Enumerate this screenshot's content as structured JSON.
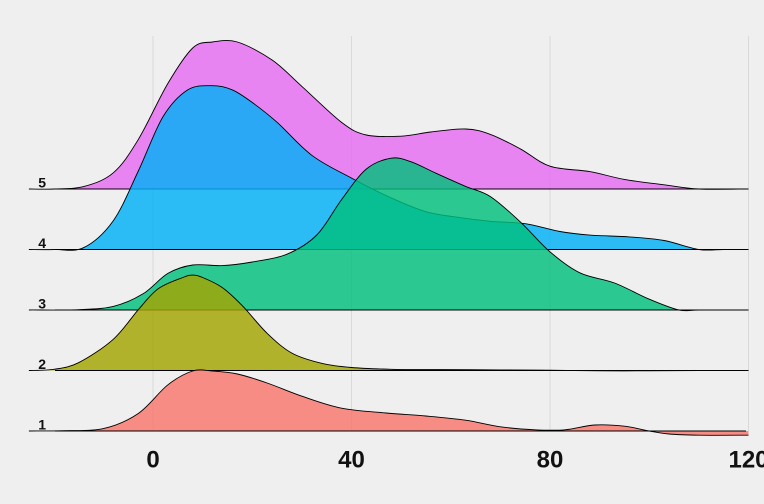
{
  "chart_data": {
    "type": "ridgeline",
    "title": "",
    "xlabel": "",
    "ylabel": "",
    "xlim": [
      -25,
      120
    ],
    "x_ticks": [
      0,
      40,
      80,
      120
    ],
    "y_ticks": [
      "1",
      "2",
      "3",
      "4",
      "5"
    ],
    "grid": "vertical major gridlines only",
    "legend": "none",
    "series": [
      {
        "group": "1",
        "color": "#F8766D",
        "density": [
          [
            -25,
            0
          ],
          [
            -18,
            0.005
          ],
          [
            -10,
            0.04
          ],
          [
            -3,
            0.29
          ],
          [
            3,
            0.77
          ],
          [
            8,
            1.0
          ],
          [
            12,
            1.0
          ],
          [
            17,
            0.95
          ],
          [
            23,
            0.8
          ],
          [
            30,
            0.58
          ],
          [
            38,
            0.38
          ],
          [
            47,
            0.3
          ],
          [
            55,
            0.25
          ],
          [
            63,
            0.18
          ],
          [
            70,
            0.07
          ],
          [
            77,
            0.02
          ],
          [
            83,
            0.02
          ],
          [
            89,
            0.1
          ],
          [
            95,
            0.08
          ],
          [
            100,
            0.0
          ],
          [
            104,
            -0.05
          ],
          [
            110,
            -0.07
          ],
          [
            120,
            -0.07
          ]
        ]
      },
      {
        "group": "2",
        "color": "#A3A500",
        "density": [
          [
            -25,
            0
          ],
          [
            -20,
            0.02
          ],
          [
            -15,
            0.13
          ],
          [
            -8,
            0.52
          ],
          [
            -3,
            1.01
          ],
          [
            1,
            1.36
          ],
          [
            6,
            1.55
          ],
          [
            8,
            1.59
          ],
          [
            10,
            1.55
          ],
          [
            14,
            1.38
          ],
          [
            18,
            1.08
          ],
          [
            23,
            0.62
          ],
          [
            28,
            0.29
          ],
          [
            34,
            0.12
          ],
          [
            40,
            0.05
          ],
          [
            48,
            0.02
          ],
          [
            58,
            0.015
          ],
          [
            70,
            0.01
          ],
          [
            80,
            0.005
          ],
          [
            90,
            -0.005
          ],
          [
            100,
            -0.005
          ],
          [
            110,
            0
          ],
          [
            120,
            0
          ]
        ]
      },
      {
        "group": "3",
        "color": "#00BF7D",
        "density": [
          [
            -25,
            0
          ],
          [
            -15,
            0.005
          ],
          [
            -8,
            0.06
          ],
          [
            -2,
            0.27
          ],
          [
            3,
            0.61
          ],
          [
            8,
            0.75
          ],
          [
            14,
            0.74
          ],
          [
            20,
            0.8
          ],
          [
            27,
            0.93
          ],
          [
            33,
            1.25
          ],
          [
            38,
            1.84
          ],
          [
            43,
            2.35
          ],
          [
            48,
            2.53
          ],
          [
            52,
            2.47
          ],
          [
            57,
            2.28
          ],
          [
            63,
            2.06
          ],
          [
            68,
            1.89
          ],
          [
            74,
            1.47
          ],
          [
            80,
            0.97
          ],
          [
            86,
            0.62
          ],
          [
            93,
            0.45
          ],
          [
            100,
            0.18
          ],
          [
            106,
            0.0
          ],
          [
            110,
            0.0
          ],
          [
            120,
            0
          ]
        ]
      },
      {
        "group": "4",
        "color": "#00B0F6",
        "density": [
          [
            -25,
            0
          ],
          [
            -20,
            0.0
          ],
          [
            -14,
            0.03
          ],
          [
            -8,
            0.48
          ],
          [
            -3,
            1.3
          ],
          [
            2,
            2.21
          ],
          [
            7,
            2.66
          ],
          [
            12,
            2.73
          ],
          [
            16,
            2.66
          ],
          [
            20,
            2.45
          ],
          [
            25,
            2.12
          ],
          [
            32,
            1.57
          ],
          [
            40,
            1.19
          ],
          [
            48,
            0.86
          ],
          [
            55,
            0.63
          ],
          [
            62,
            0.53
          ],
          [
            68,
            0.47
          ],
          [
            75,
            0.43
          ],
          [
            82,
            0.3
          ],
          [
            88,
            0.24
          ],
          [
            96,
            0.21
          ],
          [
            103,
            0.15
          ],
          [
            110,
            0
          ],
          [
            115,
            0
          ],
          [
            120,
            0
          ]
        ]
      },
      {
        "group": "5",
        "color": "#E76BF3",
        "density": [
          [
            -25,
            0
          ],
          [
            -20,
            0.0
          ],
          [
            -14,
            0.04
          ],
          [
            -8,
            0.27
          ],
          [
            -3,
            0.82
          ],
          [
            3,
            1.76
          ],
          [
            8,
            2.35
          ],
          [
            12,
            2.45
          ],
          [
            17,
            2.45
          ],
          [
            24,
            2.15
          ],
          [
            30,
            1.71
          ],
          [
            38,
            1.11
          ],
          [
            43,
            0.9
          ],
          [
            50,
            0.88
          ],
          [
            56,
            0.95
          ],
          [
            63,
            1.0
          ],
          [
            68,
            0.91
          ],
          [
            74,
            0.67
          ],
          [
            80,
            0.38
          ],
          [
            88,
            0.29
          ],
          [
            95,
            0.16
          ],
          [
            103,
            0.07
          ],
          [
            110,
            0.0
          ],
          [
            120,
            0
          ]
        ]
      }
    ]
  }
}
